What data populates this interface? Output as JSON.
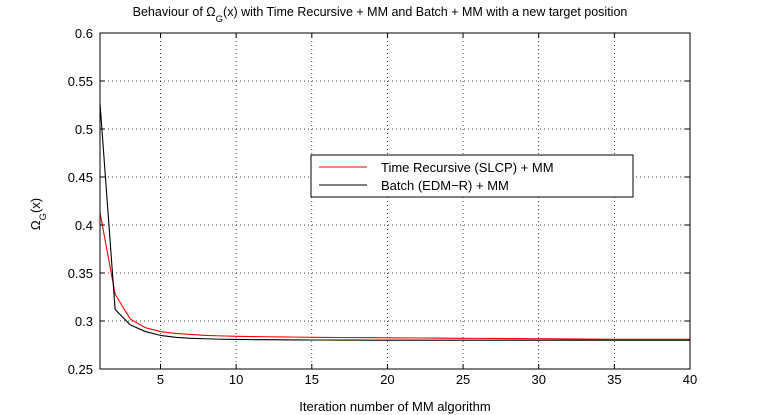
{
  "chart_data": {
    "type": "line",
    "title_main": "Behaviour of Ω",
    "title_sub": "G",
    "title_rest": "(x) with Time Recursive + MM and Batch + MM with a new target position",
    "xlabel": "Iteration number of MM algorithm",
    "ylabel_main": "Ω",
    "ylabel_sub": "G",
    "ylabel_rest": "(x)",
    "xlim": [
      1,
      40
    ],
    "ylim": [
      0.25,
      0.6
    ],
    "xticks": [
      5,
      10,
      15,
      20,
      25,
      30,
      35,
      40
    ],
    "yticks": [
      0.25,
      0.3,
      0.35,
      0.4,
      0.45,
      0.5,
      0.55,
      0.6
    ],
    "xtick_labels": [
      "5",
      "10",
      "15",
      "20",
      "25",
      "30",
      "35",
      "40"
    ],
    "ytick_labels": [
      "0.25",
      "0.3",
      "0.35",
      "0.4",
      "0.45",
      "0.5",
      "0.55",
      "0.6"
    ],
    "grid": true,
    "legend_position": "center-right",
    "series": [
      {
        "name": "Time Recursive (SLCP) + MM",
        "color": "#ff0000",
        "x": [
          1,
          2,
          3,
          4,
          5,
          6,
          7,
          8,
          9,
          10,
          11,
          12,
          13,
          14,
          15,
          16,
          17,
          18,
          19,
          20,
          21,
          22,
          23,
          24,
          25,
          26,
          27,
          28,
          29,
          30,
          31,
          32,
          33,
          34,
          35,
          36,
          37,
          38,
          39,
          40
        ],
        "values": [
          0.413,
          0.328,
          0.302,
          0.293,
          0.289,
          0.287,
          0.286,
          0.285,
          0.2845,
          0.284,
          0.2838,
          0.2836,
          0.2834,
          0.2832,
          0.283,
          0.2829,
          0.2828,
          0.2827,
          0.2826,
          0.2825,
          0.2824,
          0.2823,
          0.2822,
          0.2821,
          0.282,
          0.2819,
          0.2818,
          0.2817,
          0.2816,
          0.2815,
          0.2814,
          0.2813,
          0.2812,
          0.2811,
          0.281,
          0.281,
          0.281,
          0.281,
          0.281,
          0.281
        ]
      },
      {
        "name": "Batch (EDM−R) + MM",
        "color": "#000000",
        "x": [
          1,
          2,
          3,
          4,
          5,
          6,
          7,
          8,
          9,
          10,
          11,
          12,
          13,
          14,
          15,
          16,
          17,
          18,
          19,
          20,
          21,
          22,
          23,
          24,
          25,
          26,
          27,
          28,
          29,
          30,
          31,
          32,
          33,
          34,
          35,
          36,
          37,
          38,
          39,
          40
        ],
        "values": [
          0.527,
          0.312,
          0.296,
          0.289,
          0.285,
          0.283,
          0.282,
          0.2815,
          0.281,
          0.2808,
          0.2806,
          0.2805,
          0.2804,
          0.2803,
          0.2802,
          0.2802,
          0.2801,
          0.2801,
          0.28,
          0.28,
          0.28,
          0.28,
          0.28,
          0.28,
          0.28,
          0.28,
          0.28,
          0.28,
          0.28,
          0.28,
          0.28,
          0.28,
          0.28,
          0.28,
          0.28,
          0.28,
          0.28,
          0.28,
          0.28,
          0.28
        ]
      }
    ]
  }
}
